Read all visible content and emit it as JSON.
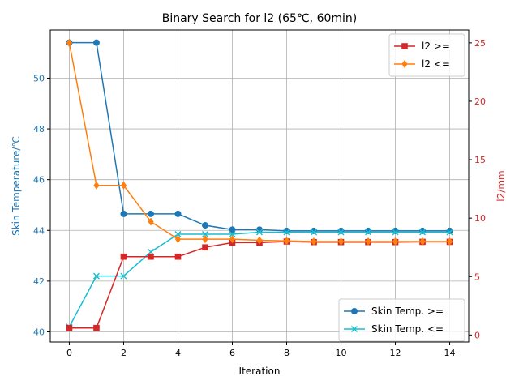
{
  "chart_data": {
    "type": "line",
    "title": "Binary Search for l2 (65℃, 60min)",
    "xlabel": "Iteration",
    "ylabel_left": "Skin Temperature/℃",
    "ylabel_right": "l2/mm",
    "x": [
      0,
      1,
      2,
      3,
      4,
      5,
      6,
      7,
      8,
      9,
      10,
      11,
      12,
      13,
      14
    ],
    "xlim": [
      -0.7,
      14.7
    ],
    "ylim_left": [
      39.6,
      51.9
    ],
    "ylim_right": [
      -0.6,
      26.1
    ],
    "xticks": [
      0,
      2,
      4,
      6,
      8,
      10,
      12,
      14
    ],
    "yticks_left": [
      40,
      42,
      44,
      46,
      48,
      50
    ],
    "yticks_right": [
      0,
      5,
      10,
      15,
      20,
      25
    ],
    "grid": true,
    "colors": {
      "left_axis": "#1f77b4",
      "right_axis": "#d62728"
    },
    "series_left": [
      {
        "name": "Skin Temp. >=",
        "color": "#1f77b4",
        "marker": "circle",
        "values": [
          51.4,
          51.4,
          44.65,
          44.65,
          44.65,
          44.2,
          44.03,
          44.03,
          43.98,
          43.98,
          43.98,
          43.98,
          43.98,
          43.98,
          43.98
        ]
      },
      {
        "name": "Skin Temp. <=",
        "color": "#17becf",
        "marker": "x",
        "values": [
          40.2,
          42.2,
          42.2,
          43.15,
          43.85,
          43.85,
          43.85,
          43.93,
          43.93,
          43.93,
          43.93,
          43.93,
          43.93,
          43.93,
          43.93
        ]
      }
    ],
    "series_right": [
      {
        "name": "l2 >=",
        "color": "#d62728",
        "marker": "square",
        "values": [
          0.6,
          0.6,
          6.7,
          6.7,
          6.7,
          7.5,
          7.9,
          7.9,
          8.0,
          7.95,
          7.95,
          7.95,
          7.95,
          7.97,
          7.97
        ]
      },
      {
        "name": "l2 <=",
        "color": "#ff7f0e",
        "marker": "diamond",
        "values": [
          25.0,
          12.8,
          12.8,
          9.7,
          8.2,
          8.2,
          8.2,
          8.1,
          8.05,
          8.0,
          8.0,
          8.0,
          8.0,
          8.0,
          8.0
        ]
      }
    ],
    "legend_right_placement": "upper-right",
    "legend_left_placement": "lower-right"
  }
}
